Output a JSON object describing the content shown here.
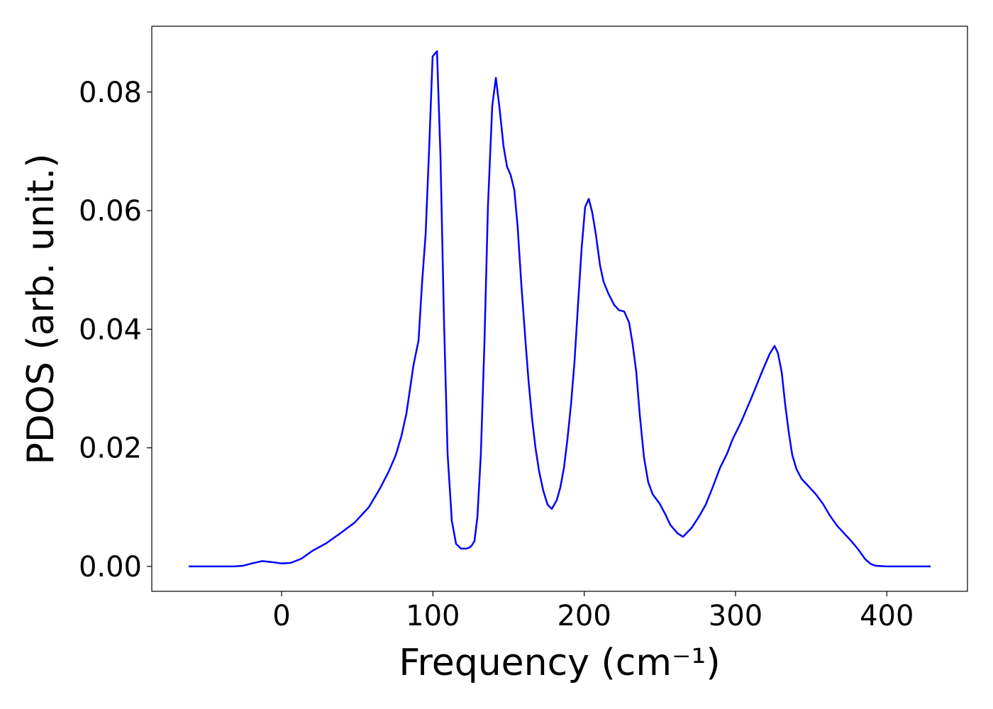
{
  "chart_data": {
    "type": "line",
    "xlabel": "Frequency (cm⁻¹)",
    "ylabel": "PDOS (arb. unit.)",
    "x": [
      -61.4,
      -31.4,
      -25.8,
      -19.7,
      -12.7,
      -5.6,
      0,
      6.1,
      13.1,
      20.2,
      29.5,
      38.9,
      48.3,
      57.7,
      64.7,
      70.8,
      75.5,
      79.2,
      82.5,
      84.8,
      87.2,
      90.5,
      92.8,
      95.2,
      97.5,
      99.8,
      102.7,
      105,
      107.3,
      109.7,
      112.5,
      115.3,
      118.6,
      122.3,
      124.2,
      125.6,
      127.5,
      129.4,
      131.7,
      134.1,
      136.4,
      139.2,
      141.6,
      143.9,
      146.7,
      149,
      151.4,
      153.8,
      156,
      158.4,
      160.8,
      163.1,
      165.5,
      167.8,
      170.2,
      173,
      175.8,
      178.6,
      181.9,
      184.2,
      186.6,
      188.9,
      191.3,
      193.6,
      195.9,
      198.3,
      200.6,
      203,
      205.3,
      207.7,
      210.5,
      212.8,
      216,
      219.8,
      223,
      226.4,
      229.7,
      232,
      234.4,
      236.7,
      239.5,
      242.3,
      245.2,
      249.8,
      253.6,
      256.9,
      261.6,
      265.3,
      271,
      275.6,
      280.3,
      285,
      289.7,
      294.4,
      298,
      303.8,
      310.8,
      317.8,
      322.5,
      325.8,
      328,
      330.5,
      332.8,
      335.2,
      337.5,
      340.3,
      343.6,
      348.3,
      353,
      357.7,
      362.3,
      367,
      371.7,
      376.4,
      381,
      385.8,
      389.5,
      392.8,
      400,
      429
    ],
    "values": [
      0,
      0,
      0.0001,
      0.0005,
      0.0009,
      0.0007,
      0.0005,
      0.0006,
      0.0013,
      0.0026,
      0.0039,
      0.0056,
      0.0074,
      0.01,
      0.013,
      0.016,
      0.0188,
      0.022,
      0.0258,
      0.0298,
      0.034,
      0.0381,
      0.0477,
      0.0561,
      0.0704,
      0.086,
      0.0869,
      0.0692,
      0.0417,
      0.019,
      0.0077,
      0.0038,
      0.003,
      0.003,
      0.0032,
      0.0035,
      0.0043,
      0.0083,
      0.019,
      0.0381,
      0.0609,
      0.0776,
      0.0824,
      0.0776,
      0.0708,
      0.0674,
      0.066,
      0.0635,
      0.0573,
      0.0477,
      0.0393,
      0.0316,
      0.025,
      0.02,
      0.016,
      0.0127,
      0.0104,
      0.0097,
      0.0112,
      0.0133,
      0.0166,
      0.0214,
      0.0274,
      0.0346,
      0.0441,
      0.0537,
      0.0606,
      0.062,
      0.0597,
      0.056,
      0.0507,
      0.048,
      0.046,
      0.0441,
      0.0432,
      0.043,
      0.0411,
      0.0375,
      0.0328,
      0.0256,
      0.0184,
      0.0142,
      0.0122,
      0.0106,
      0.0088,
      0.007,
      0.0056,
      0.005,
      0.0065,
      0.0083,
      0.0104,
      0.0134,
      0.0166,
      0.019,
      0.0214,
      0.0244,
      0.0286,
      0.033,
      0.0358,
      0.0372,
      0.036,
      0.0328,
      0.0274,
      0.0226,
      0.0188,
      0.0164,
      0.0148,
      0.0135,
      0.0122,
      0.0106,
      0.0086,
      0.0069,
      0.0056,
      0.0043,
      0.0029,
      0.0012,
      0.0004,
      0.0001,
      0,
      0
    ],
    "color": "#0000ff",
    "xlim": [
      -85.8,
      453.3
    ],
    "ylim": [
      -0.0042,
      0.0911
    ],
    "xticks": [
      0,
      100,
      200,
      300,
      400
    ],
    "yticks": [
      {
        "value": 0,
        "label": "0.00"
      },
      {
        "value": 0.02,
        "label": "0.02"
      },
      {
        "value": 0.04,
        "label": "0.04"
      },
      {
        "value": 0.06,
        "label": "0.06"
      },
      {
        "value": 0.08,
        "label": "0.08"
      }
    ]
  }
}
